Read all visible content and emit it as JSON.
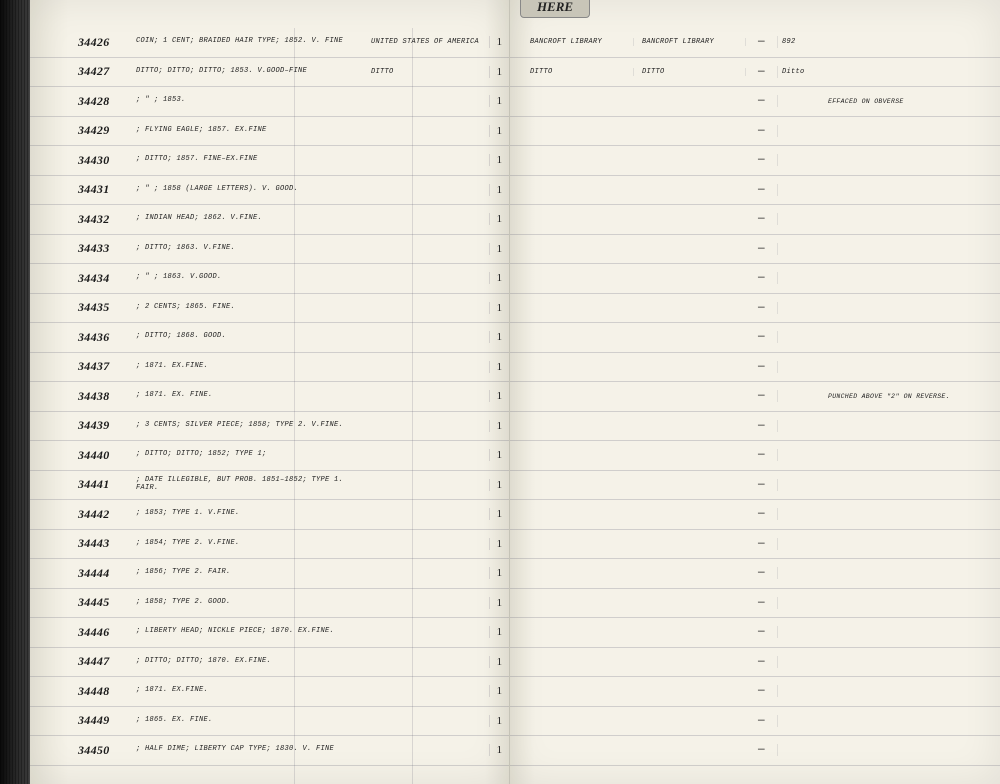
{
  "tab_label": "HERE",
  "entries": [
    {
      "id": "34426",
      "desc": "Coin; 1 cent; braided hair type; 1852. V. Fine",
      "origin": "United States of America",
      "qty": "1",
      "loc1": "Bancroft Library",
      "loc2": "Bancroft Library",
      "dash": "—",
      "ref": "892",
      "note": ""
    },
    {
      "id": "34427",
      "desc": "Ditto; Ditto; Ditto; 1853. V.Good–Fine",
      "origin": "Ditto",
      "qty": "1",
      "loc1": "Ditto",
      "loc2": "Ditto",
      "dash": "—",
      "ref": "Ditto",
      "note": ""
    },
    {
      "id": "34428",
      "desc": "; \" ; 1853.",
      "origin": "",
      "qty": "1",
      "loc1": "",
      "loc2": "",
      "dash": "—",
      "ref": "",
      "note": "Effaced on obverse"
    },
    {
      "id": "34429",
      "desc": "; Flying Eagle; 1857. Ex.Fine",
      "origin": "",
      "qty": "1",
      "loc1": "",
      "loc2": "",
      "dash": "—",
      "ref": "",
      "note": ""
    },
    {
      "id": "34430",
      "desc": "; Ditto; 1857. Fine–Ex.Fine",
      "origin": "",
      "qty": "1",
      "loc1": "",
      "loc2": "",
      "dash": "—",
      "ref": "",
      "note": ""
    },
    {
      "id": "34431",
      "desc": "; \" ; 1858 (Large Letters). V. Good.",
      "origin": "",
      "qty": "1",
      "loc1": "",
      "loc2": "",
      "dash": "—",
      "ref": "",
      "note": ""
    },
    {
      "id": "34432",
      "desc": "; Indian Head; 1862. V.Fine.",
      "origin": "",
      "qty": "1",
      "loc1": "",
      "loc2": "",
      "dash": "—",
      "ref": "",
      "note": ""
    },
    {
      "id": "34433",
      "desc": "; Ditto; 1863. V.Fine.",
      "origin": "",
      "qty": "1",
      "loc1": "",
      "loc2": "",
      "dash": "—",
      "ref": "",
      "note": ""
    },
    {
      "id": "34434",
      "desc": "; \" ; 1863. V.Good.",
      "origin": "",
      "qty": "1",
      "loc1": "",
      "loc2": "",
      "dash": "—",
      "ref": "",
      "note": ""
    },
    {
      "id": "34435",
      "desc": "; 2 cents; 1865. Fine.",
      "origin": "",
      "qty": "1",
      "loc1": "",
      "loc2": "",
      "dash": "—",
      "ref": "",
      "note": ""
    },
    {
      "id": "34436",
      "desc": "; Ditto; 1868. Good.",
      "origin": "",
      "qty": "1",
      "loc1": "",
      "loc2": "",
      "dash": "—",
      "ref": "",
      "note": ""
    },
    {
      "id": "34437",
      "desc": "; 1871. Ex.Fine.",
      "origin": "",
      "qty": "1",
      "loc1": "",
      "loc2": "",
      "dash": "—",
      "ref": "",
      "note": ""
    },
    {
      "id": "34438",
      "desc": "; 1871. Ex. Fine.",
      "origin": "",
      "qty": "1",
      "loc1": "",
      "loc2": "",
      "dash": "—",
      "ref": "",
      "note": "Punched above \"2\" on reverse."
    },
    {
      "id": "34439",
      "desc": "; 3 cents; silver piece; 1858; Type 2. V.Fine.",
      "origin": "",
      "qty": "1",
      "loc1": "",
      "loc2": "",
      "dash": "—",
      "ref": "",
      "note": ""
    },
    {
      "id": "34440",
      "desc": "; Ditto; Ditto; 1852; Type 1;",
      "origin": "",
      "qty": "1",
      "loc1": "",
      "loc2": "",
      "dash": "—",
      "ref": "",
      "note": ""
    },
    {
      "id": "34441",
      "desc": "; Date illegible, but prob. 1851–1852; Type 1. Fair.",
      "origin": "",
      "qty": "1",
      "loc1": "",
      "loc2": "",
      "dash": "—",
      "ref": "",
      "note": ""
    },
    {
      "id": "34442",
      "desc": "; 1853; Type 1. V.Fine.",
      "origin": "",
      "qty": "1",
      "loc1": "",
      "loc2": "",
      "dash": "—",
      "ref": "",
      "note": ""
    },
    {
      "id": "34443",
      "desc": "; 1854; Type 2. V.Fine.",
      "origin": "",
      "qty": "1",
      "loc1": "",
      "loc2": "",
      "dash": "—",
      "ref": "",
      "note": ""
    },
    {
      "id": "34444",
      "desc": "; 1856; Type 2. Fair.",
      "origin": "",
      "qty": "1",
      "loc1": "",
      "loc2": "",
      "dash": "—",
      "ref": "",
      "note": ""
    },
    {
      "id": "34445",
      "desc": "; 1858; Type 2. Good.",
      "origin": "",
      "qty": "1",
      "loc1": "",
      "loc2": "",
      "dash": "—",
      "ref": "",
      "note": ""
    },
    {
      "id": "34446",
      "desc": "; Liberty Head; nickle piece; 1870. Ex.Fine.",
      "origin": "",
      "qty": "1",
      "loc1": "",
      "loc2": "",
      "dash": "—",
      "ref": "",
      "note": ""
    },
    {
      "id": "34447",
      "desc": "; Ditto; Ditto; 1870. Ex.Fine.",
      "origin": "",
      "qty": "1",
      "loc1": "",
      "loc2": "",
      "dash": "—",
      "ref": "",
      "note": ""
    },
    {
      "id": "34448",
      "desc": "; 1871. Ex.Fine.",
      "origin": "",
      "qty": "1",
      "loc1": "",
      "loc2": "",
      "dash": "—",
      "ref": "",
      "note": ""
    },
    {
      "id": "34449",
      "desc": "; 1865. Ex. Fine.",
      "origin": "",
      "qty": "1",
      "loc1": "",
      "loc2": "",
      "dash": "—",
      "ref": "",
      "note": ""
    },
    {
      "id": "34450",
      "desc": "; Half Dime; Liberty Cap type; 1830. V. Fine",
      "origin": "",
      "qty": "1",
      "loc1": "",
      "loc2": "",
      "dash": "—",
      "ref": "",
      "note": ""
    }
  ]
}
